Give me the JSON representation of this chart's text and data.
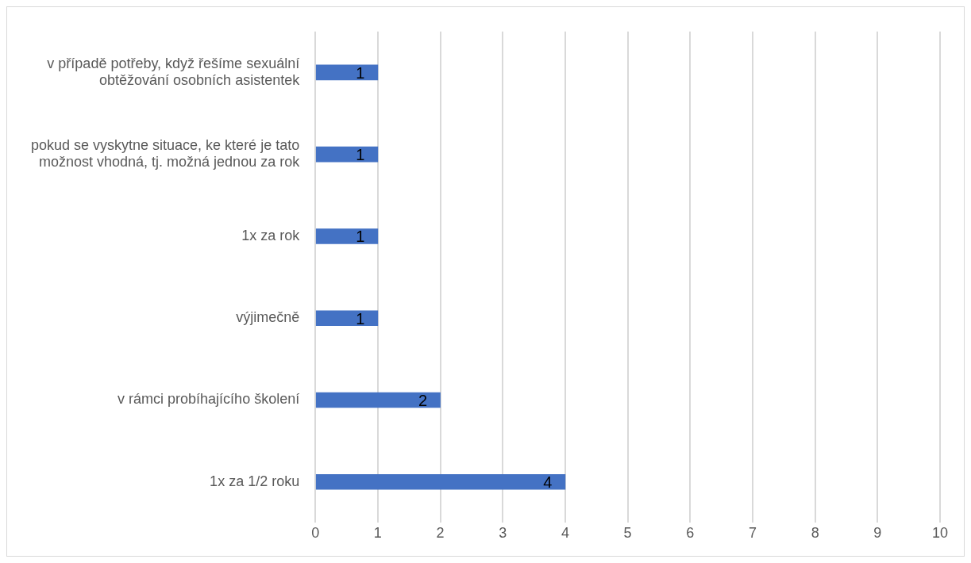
{
  "chart_data": {
    "type": "bar",
    "orientation": "horizontal",
    "categories": [
      "v případě potřeby, když řešíme sexuální obtěžování osobních asistentek",
      "pokud se vyskytne situace, ke které je tato možnost vhodná, tj. možná jednou za rok",
      "1x za rok",
      "výjimečně",
      "v rámci probíhajícího školení",
      "1x za 1/2 roku"
    ],
    "values": [
      1,
      1,
      1,
      1,
      2,
      4
    ],
    "color": "#4472c4",
    "xlim": [
      0,
      10
    ],
    "xticks": [
      0,
      1,
      2,
      3,
      4,
      5,
      6,
      7,
      8,
      9,
      10
    ],
    "grid": "x",
    "data_labels": true,
    "legend": false
  }
}
